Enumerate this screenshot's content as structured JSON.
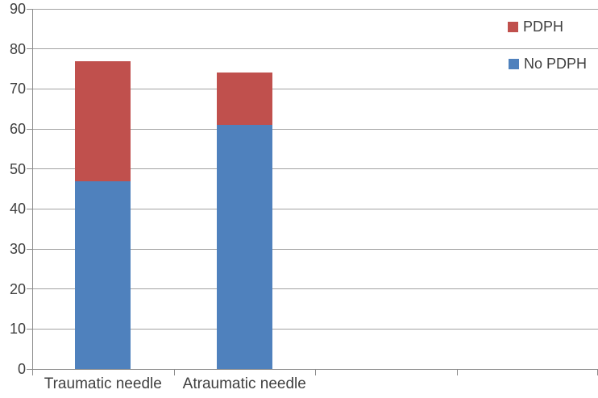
{
  "chart_data": {
    "type": "bar",
    "stacked": true,
    "title": "",
    "xlabel": "",
    "ylabel": "",
    "categories": [
      "Traumatic needle",
      "Atraumatic needle"
    ],
    "series": [
      {
        "name": "No PDPH",
        "color": "#4F81BD",
        "values": [
          47,
          61
        ]
      },
      {
        "name": "PDPH",
        "color": "#C0504D",
        "values": [
          30,
          13
        ]
      }
    ],
    "stack_totals": [
      77,
      74
    ],
    "ylim": [
      0,
      90
    ],
    "yticks": [
      0,
      10,
      20,
      30,
      40,
      50,
      60,
      70,
      80,
      90
    ],
    "grid": true,
    "category_slots": 4,
    "legend": {
      "position": "top-right",
      "entries": [
        {
          "label": "PDPH",
          "color": "#C0504D"
        },
        {
          "label": "No PDPH",
          "color": "#4F81BD"
        }
      ]
    },
    "colors": {
      "gridline": "#a3a3a3",
      "axis": "#8c8c8c",
      "text": "#3f3f3f",
      "background": "#ffffff"
    }
  }
}
